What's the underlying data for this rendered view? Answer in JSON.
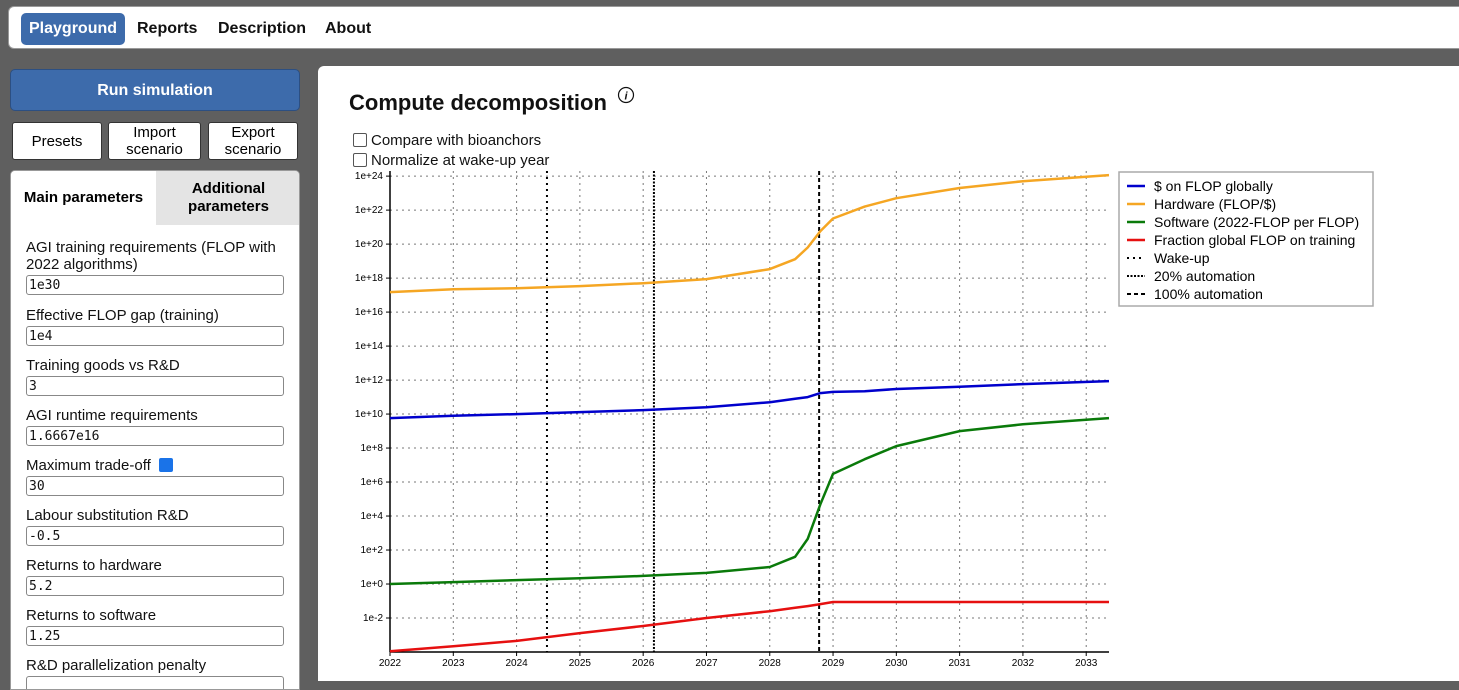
{
  "nav": {
    "tabs": [
      "Playground",
      "Reports",
      "Description",
      "About"
    ]
  },
  "sidebar": {
    "run_button": "Run simulation",
    "buttons": [
      "Presets",
      "Import scenario",
      "Export scenario"
    ],
    "param_tabs": [
      "Main parameters",
      "Additional parameters"
    ],
    "params": [
      {
        "label": "AGI training requirements (FLOP with 2022 algorithms)",
        "value": "1e30"
      },
      {
        "label": "Effective FLOP gap (training)",
        "value": "1e4"
      },
      {
        "label": "Training goods vs R&D",
        "value": "3"
      },
      {
        "label": "AGI runtime requirements",
        "value": "1.6667e16"
      },
      {
        "label": "Maximum trade-off",
        "value": "30",
        "checkbox": true
      },
      {
        "label": "Labour substitution R&D",
        "value": "-0.5"
      },
      {
        "label": "Returns to hardware",
        "value": "5.2"
      },
      {
        "label": "Returns to software",
        "value": "1.25"
      },
      {
        "label": "R&D parallelization penalty"
      }
    ]
  },
  "panel": {
    "title": "Compute decomposition",
    "options": [
      "Compare with bioanchors",
      "Normalize at wake-up year"
    ]
  },
  "chart_data": {
    "type": "line",
    "log_y": true,
    "grid": true,
    "legend": "right",
    "x": [
      2022,
      2023,
      2024,
      2025,
      2026,
      2027,
      2028,
      2028.4,
      2028.6,
      2028.8,
      2029,
      2029.5,
      2030,
      2031,
      2032,
      2033.36
    ],
    "series": [
      {
        "name": "$ on FLOP globally",
        "color": "#0000cc",
        "values": [
          5800000000.0,
          8000000000.0,
          10000000000.0,
          13000000000.0,
          17000000000.0,
          25000000000.0,
          50000000000.0,
          80000000000.0,
          100000000000.0,
          170000000000.0,
          200000000000.0,
          220000000000.0,
          300000000000.0,
          400000000000.0,
          580000000000.0,
          870000000000.0
        ]
      },
      {
        "name": "Hardware (FLOP/$)",
        "color": "#f5a623",
        "values": [
          1.5e+17,
          2.2e+17,
          2.5e+17,
          3.4e+17,
          5e+17,
          8.7e+17,
          3.4e+18,
          1.3e+19,
          6.3e+19,
          5.8e+20,
          3.2e+21,
          1.6e+22,
          5e+22,
          2e+23,
          5e+23,
          1.15e+24
        ]
      },
      {
        "name": "Software (2022-FLOP per FLOP)",
        "color": "#0a7a0a",
        "values": [
          1,
          1.3,
          1.7,
          2.2,
          3,
          4.5,
          10,
          40,
          450,
          50000.0,
          3000000.0,
          22000000.0,
          130000000.0,
          1000000000.0,
          2500000000.0,
          5800000000.0
        ]
      },
      {
        "name": "Fraction global FLOP on training",
        "color": "#e61010",
        "values": [
          0.00011,
          0.00022,
          0.00045,
          0.0013,
          0.0034,
          0.01,
          0.025,
          0.04,
          0.05,
          0.066,
          0.087,
          0.087,
          0.087,
          0.087,
          0.087,
          0.087
        ]
      }
    ],
    "markers": [
      {
        "name": "Wake-up",
        "x": 2024.48,
        "style": "dotted"
      },
      {
        "name": "20% automation",
        "x": 2026.17,
        "style": "dense-dotted"
      },
      {
        "name": "100% automation",
        "x": 2028.78,
        "style": "dashed"
      }
    ],
    "xlim": [
      2022,
      2033.36
    ],
    "xticks": [
      2022,
      2023,
      2024,
      2025,
      2026,
      2027,
      2028,
      2029,
      2030,
      2031,
      2032,
      2033
    ],
    "ylim": [
      0.0001,
      2e+24
    ],
    "yticks": [
      {
        "value": 0.01,
        "label": "1e-2"
      },
      {
        "value": 1,
        "label": "1e+0"
      },
      {
        "value": 100,
        "label": "1e+2"
      },
      {
        "value": 10000,
        "label": "1e+4"
      },
      {
        "value": 1000000,
        "label": "1e+6"
      },
      {
        "value": 100000000,
        "label": "1e+8"
      },
      {
        "value": 10000000000.0,
        "label": "1e+10"
      },
      {
        "value": 1000000000000.0,
        "label": "1e+12"
      },
      {
        "value": 100000000000000.0,
        "label": "1e+14"
      },
      {
        "value": 1e+16,
        "label": "1e+16"
      },
      {
        "value": 1e+18,
        "label": "1e+18"
      },
      {
        "value": 1e+20,
        "label": "1e+20"
      },
      {
        "value": 1e+22,
        "label": "1e+22"
      },
      {
        "value": 1e+24,
        "label": "1e+24"
      }
    ]
  }
}
